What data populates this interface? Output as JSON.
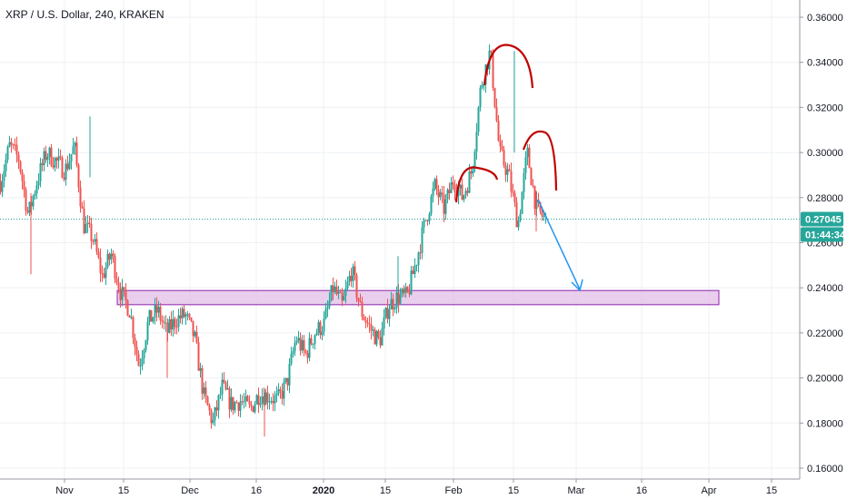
{
  "chart_data": {
    "type": "candlestick",
    "title": "XRP / U.S. Dollar, 240, KRAKEN",
    "x_ticks": [
      {
        "label": "Nov",
        "bold": false
      },
      {
        "label": "15",
        "bold": false
      },
      {
        "label": "Dec",
        "bold": false
      },
      {
        "label": "16",
        "bold": false
      },
      {
        "label": "2020",
        "bold": true
      },
      {
        "label": "15",
        "bold": false
      },
      {
        "label": "Feb",
        "bold": false
      },
      {
        "label": "15",
        "bold": false
      },
      {
        "label": "Mar",
        "bold": false
      },
      {
        "label": "16",
        "bold": false
      },
      {
        "label": "Apr",
        "bold": false
      },
      {
        "label": "15",
        "bold": false
      }
    ],
    "y_ticks": [
      "0.16000",
      "0.18000",
      "0.20000",
      "0.22000",
      "0.24000",
      "0.26000",
      "0.28000",
      "0.30000",
      "0.32000",
      "0.34000",
      "0.36000"
    ],
    "ylim": [
      0.156,
      0.366
    ],
    "price_path": [
      0.287,
      0.303,
      0.297,
      0.272,
      0.288,
      0.3,
      0.296,
      0.292,
      0.303,
      0.268,
      0.262,
      0.245,
      0.255,
      0.238,
      0.23,
      0.205,
      0.225,
      0.23,
      0.22,
      0.226,
      0.228,
      0.218,
      0.192,
      0.18,
      0.196,
      0.188,
      0.19,
      0.186,
      0.193,
      0.192,
      0.19,
      0.198,
      0.218,
      0.21,
      0.22,
      0.224,
      0.24,
      0.232,
      0.248,
      0.23,
      0.222,
      0.216,
      0.232,
      0.236,
      0.236,
      0.252,
      0.27,
      0.285,
      0.275,
      0.288,
      0.28,
      0.292,
      0.33,
      0.345,
      0.3,
      0.29,
      0.268,
      0.3,
      0.275,
      0.27
    ],
    "last_price": "0.27045",
    "countdown": "01:44:34",
    "support_zone": [
      0.2325,
      0.2388
    ],
    "pattern": "head-and-shoulders",
    "colors": {
      "up": "#26a69a",
      "down": "#ef5350",
      "pattern": "#c00000",
      "arrow": "#2196f3",
      "zone_fill": "#e1bee7",
      "zone_border": "#8e24aa",
      "badge": "#26a69a"
    }
  }
}
